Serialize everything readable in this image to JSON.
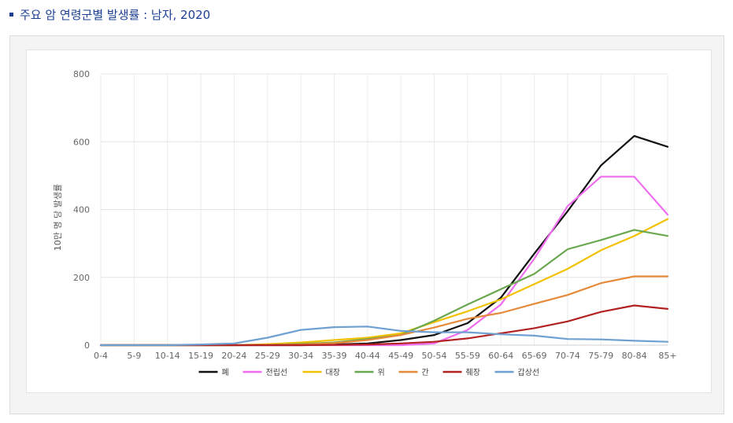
{
  "page_title": "주요 암 연령군별 발생률 : 남자, 2020",
  "chart_data": {
    "type": "line",
    "title": "",
    "ylabel": "10만 명 당 발생률",
    "xlabel": "",
    "ylim": [
      0,
      800
    ],
    "yticks": [
      0,
      200,
      400,
      600,
      800
    ],
    "grid": true,
    "legend_position": "bottom",
    "categories": [
      "0-4",
      "5-9",
      "10-14",
      "15-19",
      "20-24",
      "25-29",
      "30-34",
      "35-39",
      "40-44",
      "45-49",
      "50-54",
      "55-59",
      "60-64",
      "65-69",
      "70-74",
      "75-79",
      "80-84",
      "85+"
    ],
    "series": [
      {
        "name": "폐",
        "color": "#111111",
        "values": [
          0,
          0,
          0,
          0,
          0,
          0,
          0,
          2,
          5,
          15,
          30,
          65,
          140,
          270,
          395,
          530,
          617,
          585
        ]
      },
      {
        "name": "전립선",
        "color": "#f06df0",
        "values": [
          0,
          0,
          0,
          0,
          0,
          0,
          0,
          0,
          0,
          0,
          5,
          45,
          120,
          255,
          410,
          497,
          497,
          385
        ]
      },
      {
        "name": "대장",
        "color": "#f2c100",
        "values": [
          0,
          0,
          0,
          0,
          0,
          3,
          8,
          15,
          22,
          35,
          68,
          100,
          135,
          180,
          225,
          280,
          322,
          372
        ]
      },
      {
        "name": "위",
        "color": "#6aa84f",
        "values": [
          0,
          0,
          0,
          0,
          0,
          1,
          4,
          8,
          18,
          30,
          72,
          120,
          165,
          210,
          283,
          310,
          340,
          322
        ]
      },
      {
        "name": "간",
        "color": "#e68a3a",
        "values": [
          0,
          0,
          0,
          0,
          0,
          1,
          2,
          6,
          15,
          30,
          52,
          78,
          95,
          122,
          148,
          183,
          203,
          203
        ]
      },
      {
        "name": "췌장",
        "color": "#b22222",
        "values": [
          0,
          0,
          0,
          0,
          0,
          0,
          0,
          1,
          2,
          5,
          10,
          20,
          35,
          50,
          70,
          98,
          117,
          107
        ]
      },
      {
        "name": "갑상선",
        "color": "#6fa0d2",
        "values": [
          0,
          0,
          0,
          2,
          5,
          22,
          45,
          53,
          55,
          42,
          38,
          38,
          32,
          28,
          18,
          17,
          13,
          10
        ]
      }
    ]
  }
}
